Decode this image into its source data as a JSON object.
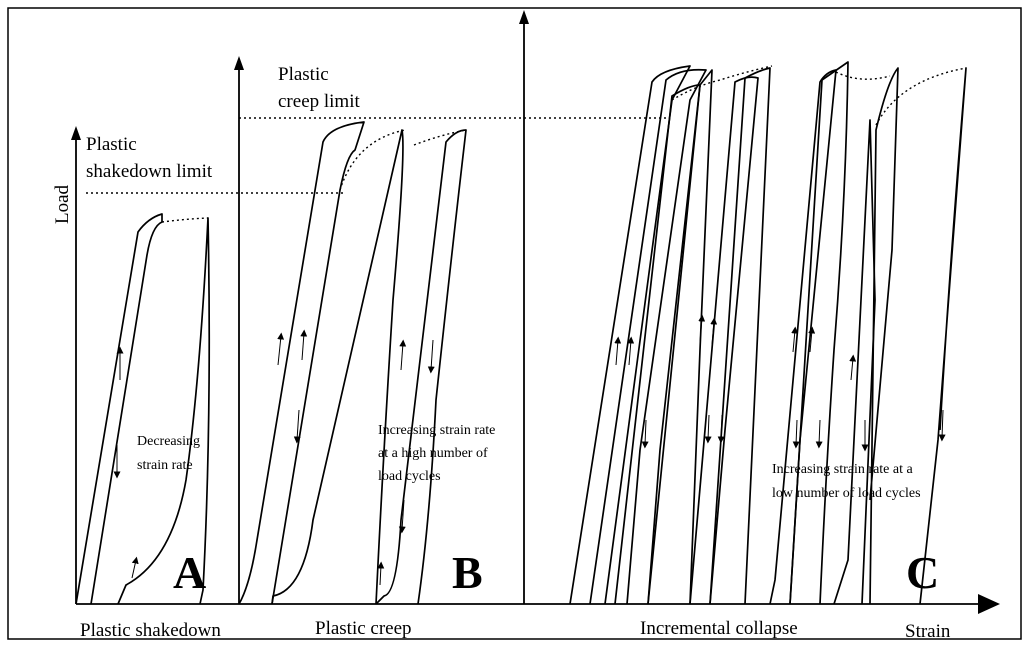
{
  "labels": {
    "y_axis": "Load",
    "x_axis": "Strain",
    "shakedown_limit_line1": "Plastic",
    "shakedown_limit_line2": "shakedown limit",
    "creep_limit_line1": "Plastic",
    "creep_limit_line2": "creep limit"
  },
  "regions": [
    {
      "letter": "A",
      "name": "Plastic shakedown",
      "note": [
        "Decreasing",
        "strain rate"
      ]
    },
    {
      "letter": "B",
      "name": "Plastic creep",
      "note": [
        "Increasing strain rate",
        "at a high number of",
        "load cycles"
      ]
    },
    {
      "letter": "C",
      "name": "Incremental collapse",
      "note": [
        "Increasing strain rate at a",
        "low number of load cycles"
      ]
    }
  ]
}
